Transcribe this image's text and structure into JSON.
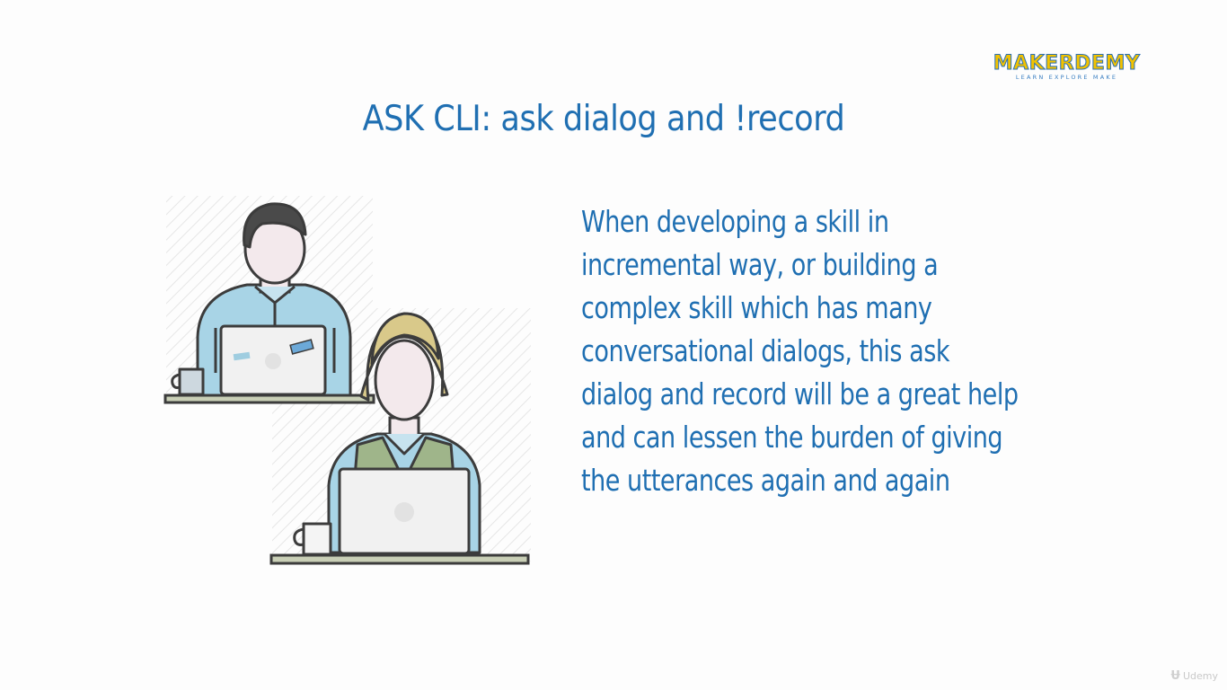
{
  "slide": {
    "title": "ASK CLI: ask dialog and !record",
    "body": "When developing a skill in\nincremental way, or building a\ncomplex skill which has many\nconversational dialogs, this ask\ndialog and record will be a great help\nand can lessen the burden of giving\nthe utterances again and again"
  },
  "logo": {
    "name": "MAKERDEMY",
    "tagline": "LEARN EXPLORE MAKE"
  },
  "watermark": {
    "icon": "udemy-icon",
    "text": "Udemy"
  },
  "colors": {
    "text_blue": "#1f6fb2",
    "logo_yellow": "#f2c200",
    "shirt_blue": "#a8d4e6",
    "vest_green": "#9fb58a",
    "hair_dark": "#4a4a4a",
    "hair_blonde": "#d9c98a"
  }
}
